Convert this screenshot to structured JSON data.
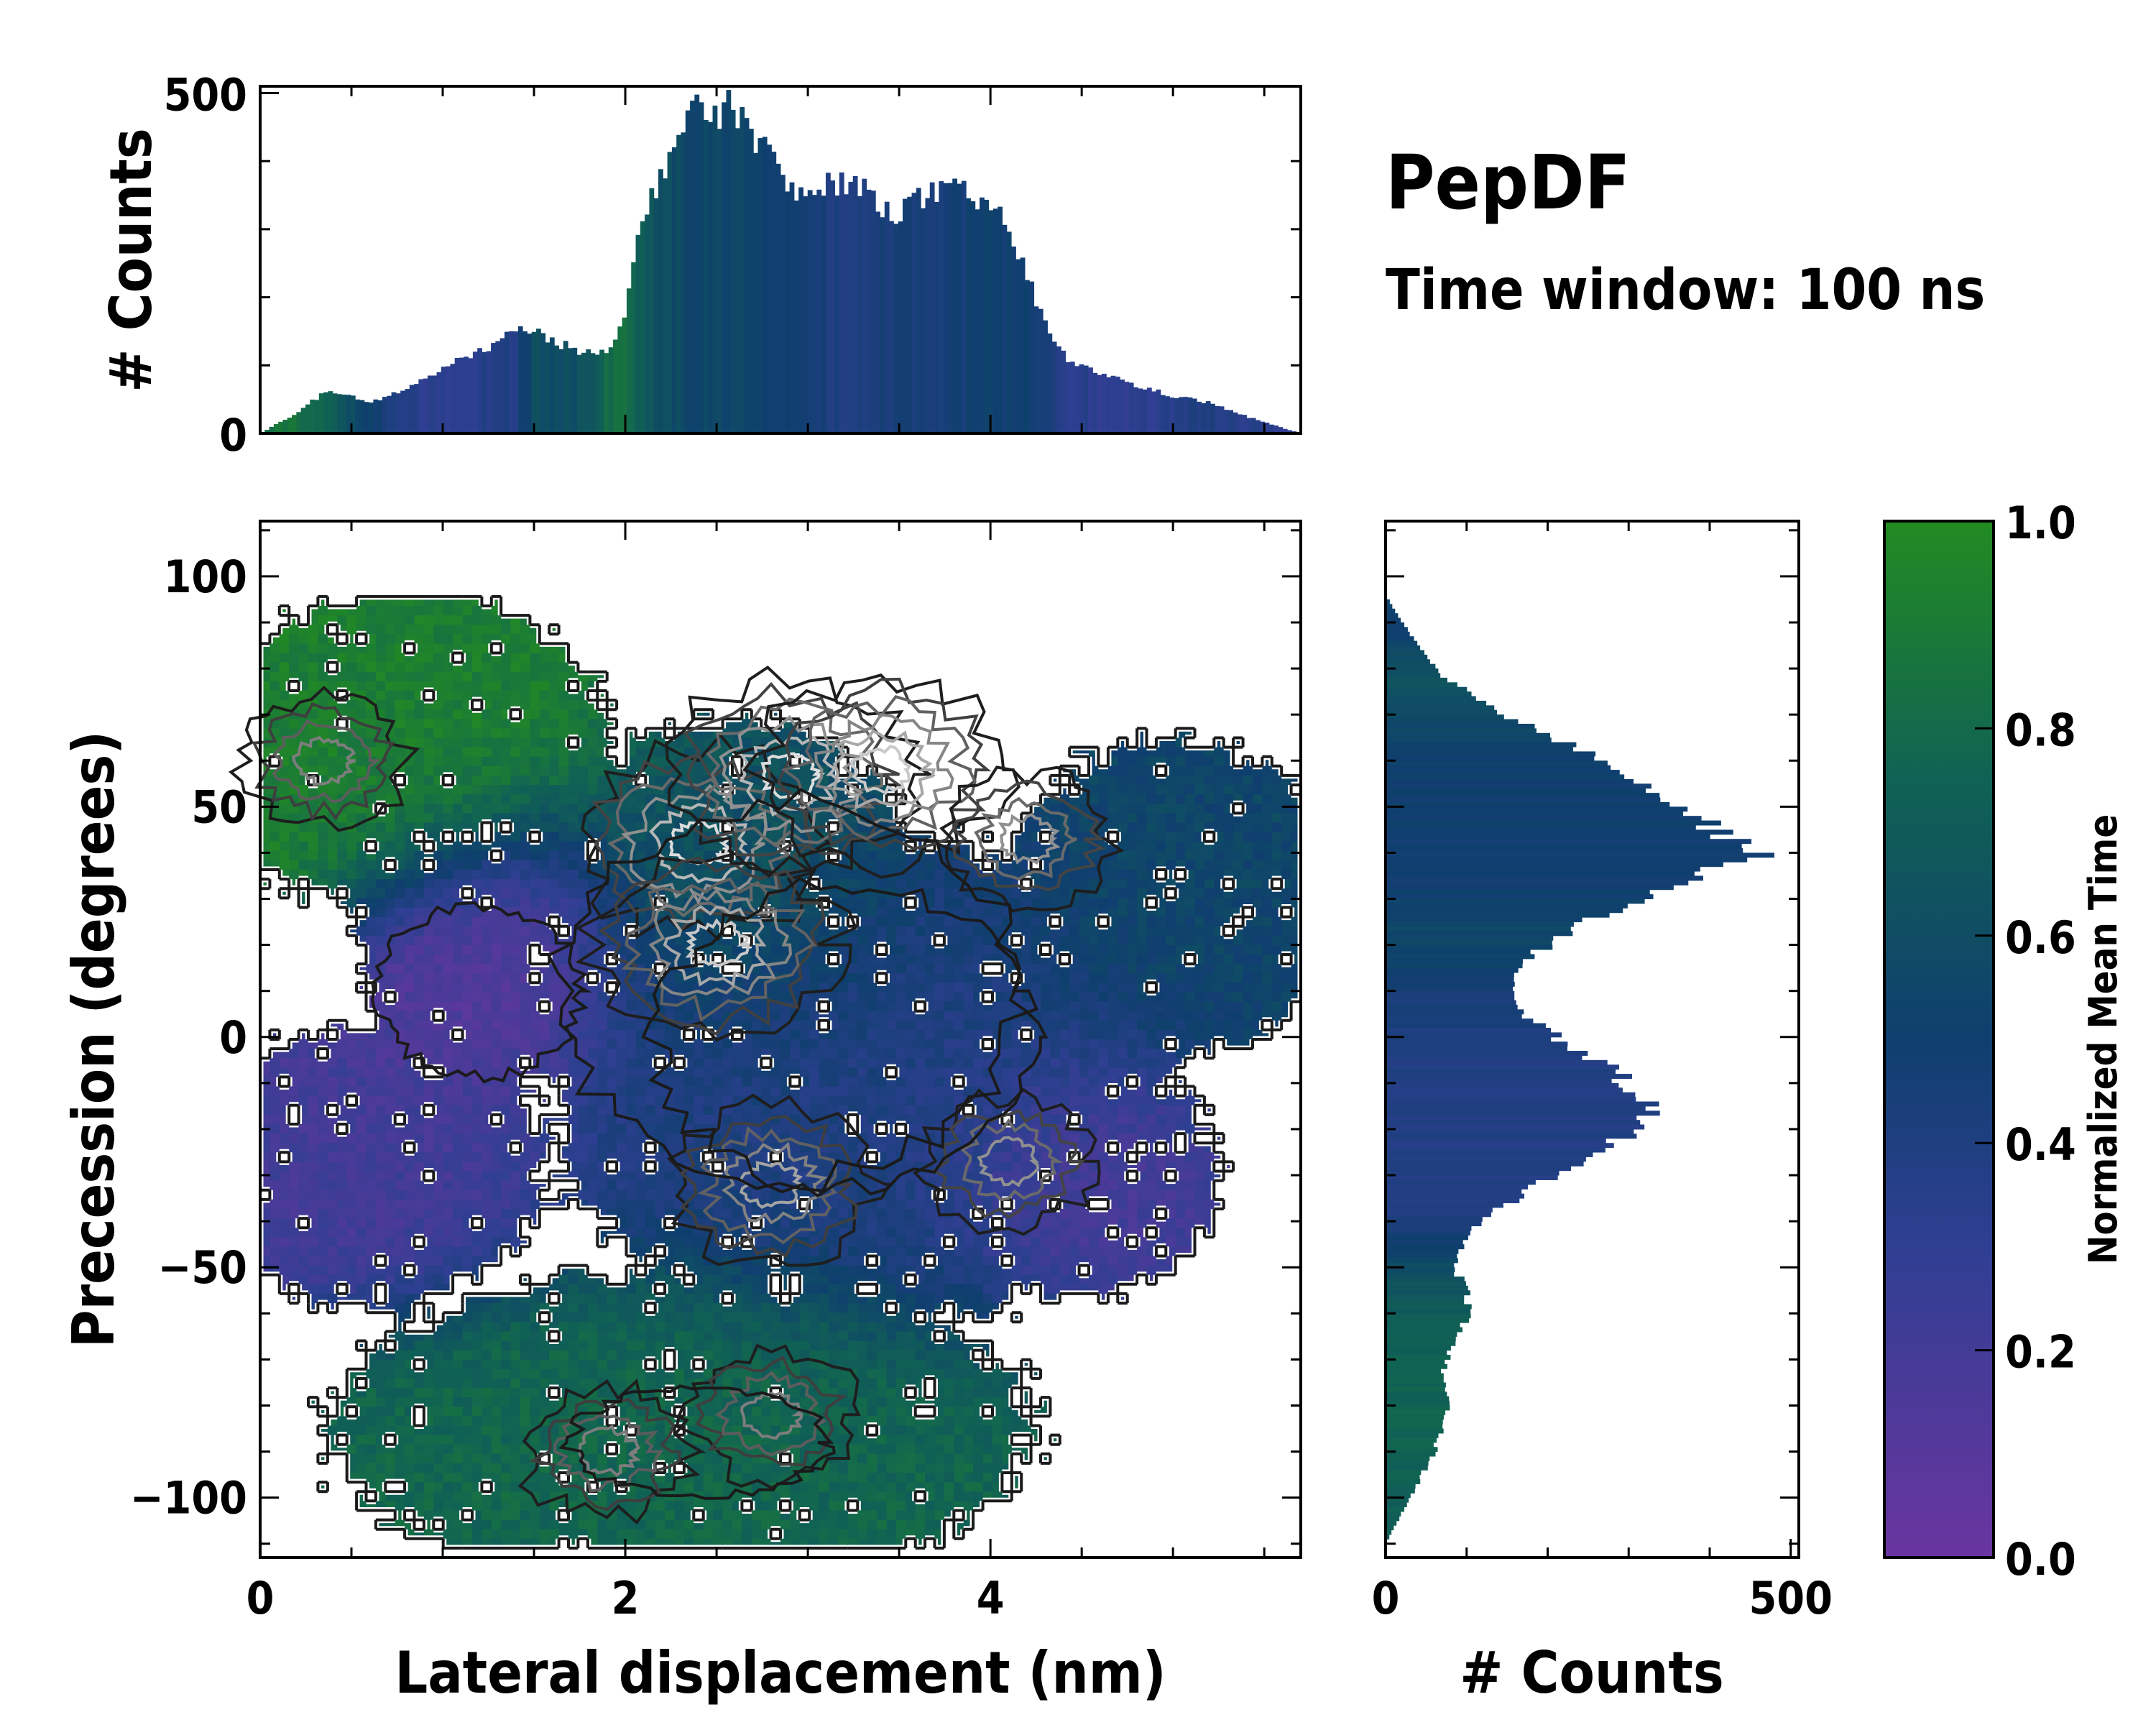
{
  "figure": {
    "title": "PepDF",
    "subtitle": "Time window: 100 ns"
  },
  "colors": {
    "cmap_low": "#6a35a0",
    "cmap_mid_low": "#2f3f92",
    "cmap_mid": "#0f3f6e",
    "cmap_mid_high": "#106254",
    "cmap_high": "#228b22",
    "contour_dark": "#1a1a1a",
    "contour_light": "#d8d8d8"
  },
  "chart_data": [
    {
      "type": "heatmap",
      "name": "joint-2d-histogram",
      "xlabel": "Lateral displacement (nm)",
      "ylabel": "Precession (degrees)",
      "xlim": [
        0,
        5.7
      ],
      "ylim": [
        -113,
        112
      ],
      "xticks": [
        0,
        2,
        4
      ],
      "xtick_labels": [
        "0",
        "2",
        "4"
      ],
      "yticks": [
        100,
        50,
        0,
        -50,
        -100
      ],
      "ytick_labels": [
        "100",
        "50",
        "0",
        "−50",
        "−100"
      ],
      "color_value": "Normalized Mean Time",
      "regions": [
        {
          "label": "upper-left",
          "x": 0.8,
          "y": 62,
          "sx": 0.6,
          "sy": 18,
          "t": 0.92
        },
        {
          "label": "left-middle",
          "x": 1.3,
          "y": 18,
          "sx": 0.4,
          "sy": 16,
          "t": 0.1
        },
        {
          "label": "left-lower",
          "x": 0.6,
          "y": -28,
          "sx": 0.5,
          "sy": 16,
          "t": 0.2
        },
        {
          "label": "bottom",
          "x": 2.3,
          "y": -85,
          "sx": 1.0,
          "sy": 18,
          "t": 0.78
        },
        {
          "label": "center-upper",
          "x": 2.6,
          "y": 35,
          "sx": 0.5,
          "sy": 18,
          "t": 0.65
        },
        {
          "label": "center",
          "x": 3.3,
          "y": -10,
          "sx": 0.9,
          "sy": 28,
          "t": 0.4
        },
        {
          "label": "right",
          "x": 5.0,
          "y": 30,
          "sx": 0.5,
          "sy": 18,
          "t": 0.55
        },
        {
          "label": "right-lower",
          "x": 4.5,
          "y": -30,
          "sx": 0.4,
          "sy": 14,
          "t": 0.15
        }
      ],
      "density_peaks": [
        {
          "x": 2.4,
          "y": 42,
          "w": 1.0
        },
        {
          "x": 2.5,
          "y": 20,
          "w": 0.9
        },
        {
          "x": 2.9,
          "y": 57,
          "w": 1.0
        },
        {
          "x": 3.4,
          "y": 58,
          "w": 0.9
        },
        {
          "x": 2.8,
          "y": -32,
          "w": 0.7
        },
        {
          "x": 4.1,
          "y": -27,
          "w": 0.6
        },
        {
          "x": 4.2,
          "y": 43,
          "w": 0.6
        },
        {
          "x": 0.35,
          "y": 60,
          "w": 0.5
        },
        {
          "x": 1.9,
          "y": -90,
          "w": 0.5
        },
        {
          "x": 2.8,
          "y": -82,
          "w": 0.5
        }
      ]
    },
    {
      "type": "bar",
      "name": "top-marginal-histogram",
      "title": "",
      "xlabel": "",
      "ylabel": "# Counts",
      "xlim": [
        0,
        5.7
      ],
      "ylim": [
        0,
        510
      ],
      "yticks": [
        0,
        500
      ],
      "ytick_labels": [
        "0",
        "500"
      ],
      "x": [
        0.0,
        0.2,
        0.35,
        0.5,
        0.6,
        0.8,
        1.0,
        1.2,
        1.4,
        1.5,
        1.7,
        1.8,
        1.9,
        2.0,
        2.05,
        2.15,
        2.25,
        2.35,
        2.5,
        2.6,
        2.75,
        2.9,
        3.0,
        3.2,
        3.35,
        3.5,
        3.65,
        3.8,
        3.95,
        4.1,
        4.2,
        4.3,
        4.45,
        4.6,
        4.8,
        5.0,
        5.2,
        5.4,
        5.6,
        5.7
      ],
      "values": [
        0,
        30,
        60,
        55,
        45,
        65,
        95,
        120,
        150,
        150,
        125,
        120,
        125,
        165,
        265,
        350,
        420,
        470,
        470,
        480,
        425,
        355,
        350,
        375,
        345,
        325,
        350,
        355,
        345,
        300,
        230,
        160,
        100,
        90,
        70,
        55,
        45,
        25,
        8,
        0
      ],
      "time_color": [
        0.85,
        0.85,
        0.75,
        0.6,
        0.5,
        0.35,
        0.3,
        0.35,
        0.4,
        0.6,
        0.6,
        0.65,
        0.8,
        0.85,
        0.75,
        0.65,
        0.6,
        0.55,
        0.55,
        0.55,
        0.5,
        0.5,
        0.45,
        0.4,
        0.42,
        0.45,
        0.45,
        0.45,
        0.5,
        0.5,
        0.5,
        0.45,
        0.35,
        0.3,
        0.3,
        0.35,
        0.4,
        0.35,
        0.3,
        0.3
      ]
    },
    {
      "type": "bar",
      "name": "right-marginal-histogram",
      "orientation": "horizontal",
      "xlabel": "# Counts",
      "ylabel": "",
      "xlim": [
        0,
        510
      ],
      "ylim": [
        -113,
        112
      ],
      "xticks": [
        0,
        500
      ],
      "xtick_labels": [
        "0",
        "500"
      ],
      "y": [
        96,
        90,
        85,
        78,
        72,
        65,
        60,
        55,
        50,
        45,
        40,
        35,
        30,
        25,
        20,
        15,
        10,
        5,
        0,
        -5,
        -10,
        -15,
        -20,
        -25,
        -30,
        -35,
        -40,
        -45,
        -50,
        -55,
        -60,
        -65,
        -70,
        -75,
        -80,
        -85,
        -90,
        -95,
        -100,
        -105,
        -110
      ],
      "values": [
        0,
        20,
        40,
        70,
        130,
        200,
        280,
        320,
        360,
        410,
        460,
        390,
        310,
        250,
        200,
        160,
        150,
        175,
        210,
        260,
        300,
        330,
        310,
        260,
        210,
        160,
        120,
        95,
        85,
        100,
        105,
        90,
        75,
        70,
        80,
        70,
        60,
        45,
        30,
        15,
        0
      ],
      "time_color": [
        0.55,
        0.5,
        0.55,
        0.65,
        0.6,
        0.55,
        0.52,
        0.5,
        0.5,
        0.48,
        0.48,
        0.48,
        0.5,
        0.55,
        0.55,
        0.5,
        0.45,
        0.45,
        0.4,
        0.4,
        0.38,
        0.38,
        0.38,
        0.38,
        0.38,
        0.38,
        0.4,
        0.5,
        0.6,
        0.65,
        0.7,
        0.72,
        0.75,
        0.75,
        0.75,
        0.75,
        0.75,
        0.75,
        0.72,
        0.72,
        0.7
      ]
    },
    {
      "type": "colorbar",
      "name": "colorbar",
      "label": "Normalized Mean Time",
      "range": [
        0,
        1
      ],
      "ticks": [
        1.0,
        0.8,
        0.6,
        0.4,
        0.2,
        0.0
      ],
      "tick_labels": [
        "1.0",
        "0.8",
        "0.6",
        "0.4",
        "0.2",
        "0.0"
      ]
    }
  ]
}
